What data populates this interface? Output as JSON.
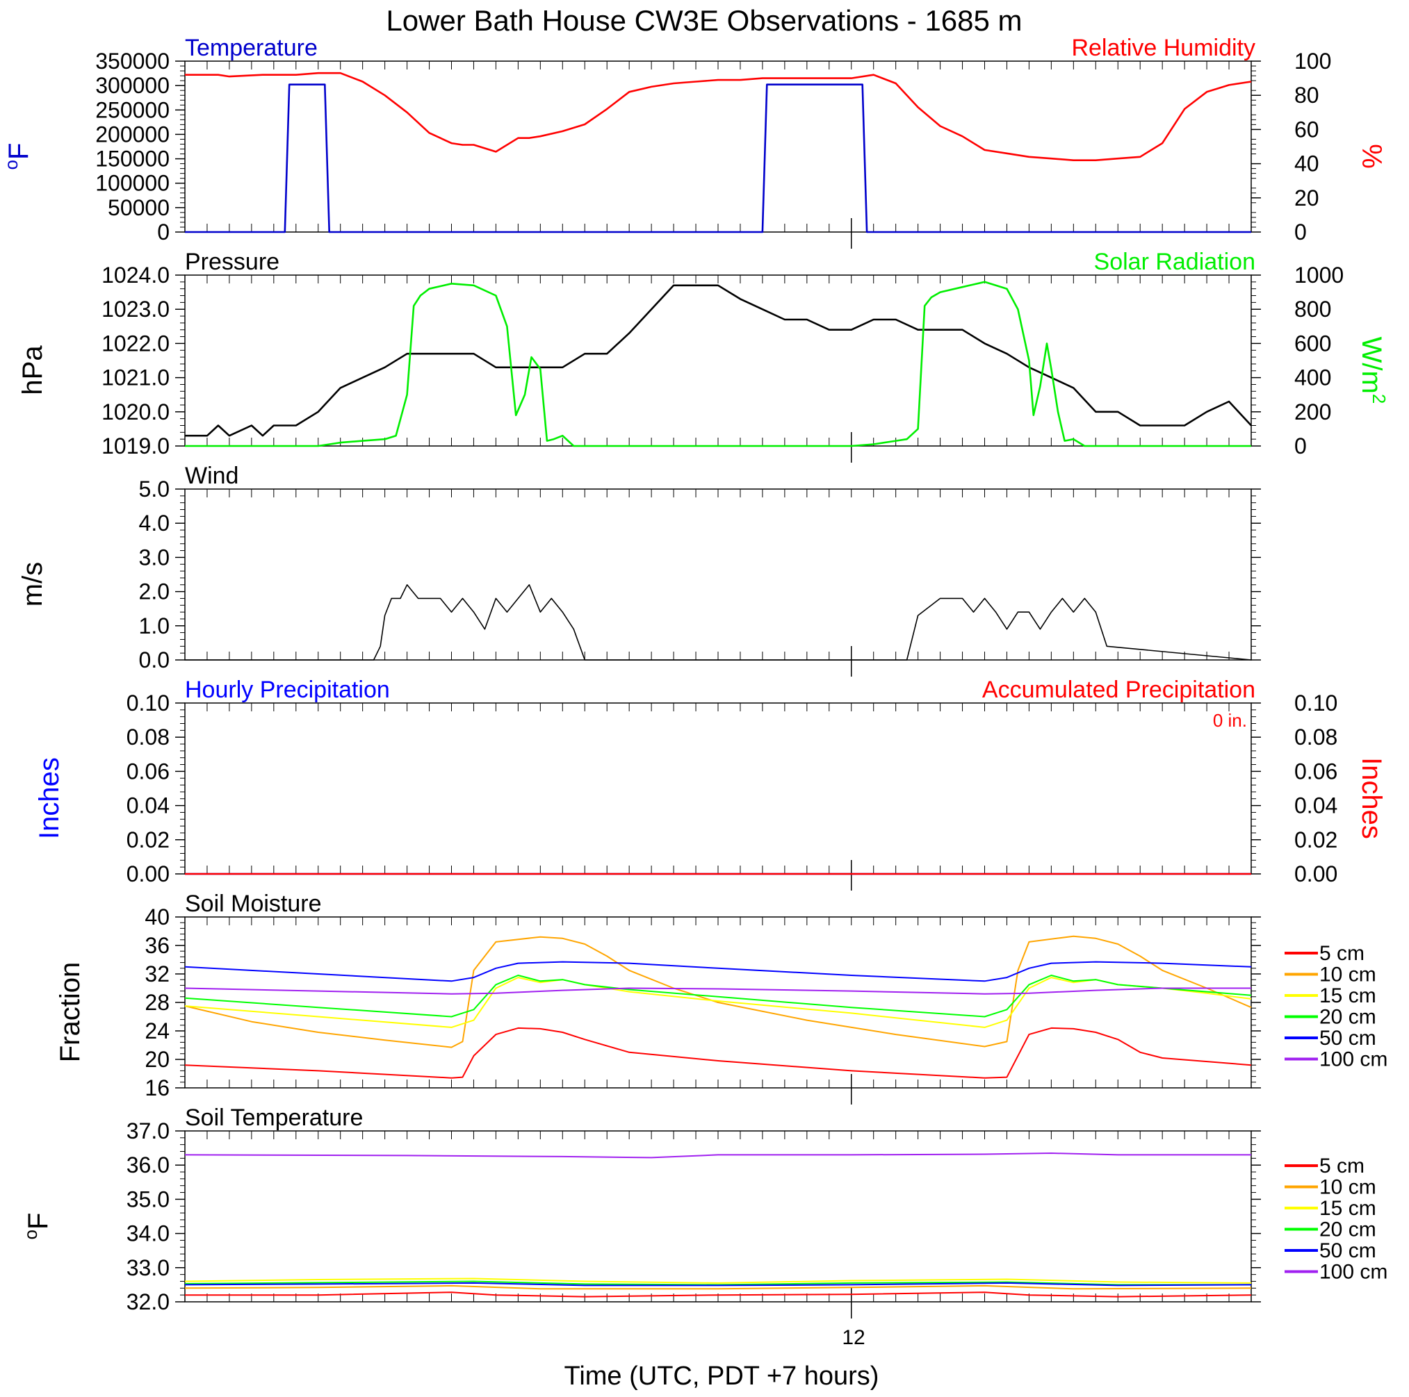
{
  "title": "Lower Bath House CW3E Observations - 1685 m",
  "xlabel": "Time (UTC, PDT +7 hours)",
  "x_tick_label": "12",
  "colors": {
    "temperature": "#0000cc",
    "humidity": "#ff0000",
    "pressure": "#000000",
    "solar": "#00ee00",
    "wind": "#000000",
    "hourly_precip": "#0000ff",
    "accum_precip": "#ff0000",
    "depths": [
      "#ff0000",
      "#ffa500",
      "#ffff00",
      "#00ff00",
      "#0000ff",
      "#a020f0"
    ]
  },
  "chart_data": [
    {
      "type": "line",
      "title": "Temperature",
      "title_right": "Relative Humidity",
      "ylabel": "oF",
      "ylabel_right": "%",
      "ylim": [
        0,
        350000
      ],
      "yticks": [
        "0",
        "50000",
        "100000",
        "150000",
        "200000",
        "250000",
        "300000",
        "350000"
      ],
      "ylim_right": [
        0,
        100
      ],
      "yticks_right": [
        "0",
        "20",
        "40",
        "60",
        "80",
        "100"
      ],
      "xlim": [
        0,
        48
      ],
      "series": [
        {
          "name": "Temperature",
          "axis": "left",
          "x": [
            0,
            4.5,
            4.7,
            6.3,
            6.5,
            26.0,
            26.2,
            30.5,
            30.7,
            48
          ],
          "values": [
            0,
            0,
            302000,
            302000,
            0,
            0,
            302000,
            302000,
            0,
            0
          ]
        },
        {
          "name": "Relative Humidity",
          "axis": "right",
          "x": [
            0,
            1.5,
            2,
            3.5,
            4,
            5,
            6,
            7,
            8,
            9,
            10,
            11,
            12,
            12.5,
            13,
            14,
            15,
            15.5,
            16,
            17,
            18,
            19,
            20,
            21,
            22,
            23,
            24,
            25,
            26,
            27,
            28,
            29,
            30,
            31,
            32,
            33,
            34,
            35,
            36,
            37,
            38,
            39,
            40,
            41,
            42,
            43,
            44,
            45,
            46,
            47,
            48
          ],
          "values": [
            92,
            92,
            91,
            92,
            92,
            92,
            93,
            93,
            88,
            80,
            70,
            58,
            52,
            51,
            51,
            47,
            55,
            55,
            56,
            59,
            63,
            72,
            82,
            85,
            87,
            88,
            89,
            89,
            90,
            90,
            90,
            90,
            90,
            92,
            87,
            73,
            62,
            56,
            48,
            46,
            44,
            43,
            42,
            42,
            43,
            44,
            52,
            72,
            82,
            86,
            88
          ]
        }
      ]
    },
    {
      "type": "line",
      "title": "Pressure",
      "title_right": "Solar Radiation",
      "ylabel": "hPa",
      "ylabel_right": "W/m2",
      "ylim": [
        1019.0,
        1024.0
      ],
      "yticks": [
        "1019.0",
        "1020.0",
        "1021.0",
        "1022.0",
        "1023.0",
        "1024.0"
      ],
      "ylim_right": [
        0,
        1000
      ],
      "yticks_right": [
        "0",
        "200",
        "400",
        "600",
        "800",
        "1000"
      ],
      "xlim": [
        0,
        48
      ],
      "series": [
        {
          "name": "Pressure",
          "axis": "left",
          "x": [
            0,
            1,
            1.5,
            2,
            3,
            3.5,
            4,
            5,
            6,
            7,
            8,
            9,
            10,
            11,
            12,
            13,
            14,
            15,
            16,
            17,
            18,
            19,
            20,
            21,
            22,
            23,
            24,
            25,
            26,
            27,
            28,
            29,
            30,
            31,
            32,
            33,
            34,
            35,
            36,
            37,
            38,
            39,
            40,
            41,
            42,
            43,
            44,
            45,
            46,
            47,
            48
          ],
          "values": [
            1019.3,
            1019.3,
            1019.6,
            1019.3,
            1019.6,
            1019.3,
            1019.6,
            1019.6,
            1020.0,
            1020.7,
            1021.0,
            1021.3,
            1021.7,
            1021.7,
            1021.7,
            1021.7,
            1021.3,
            1021.3,
            1021.3,
            1021.3,
            1021.7,
            1021.7,
            1022.3,
            1023.0,
            1023.7,
            1023.7,
            1023.7,
            1023.3,
            1023.0,
            1022.7,
            1022.7,
            1022.4,
            1022.4,
            1022.7,
            1022.7,
            1022.4,
            1022.4,
            1022.4,
            1022.0,
            1021.7,
            1021.3,
            1021.0,
            1020.7,
            1020.0,
            1020.0,
            1019.6,
            1019.6,
            1019.6,
            1020.0,
            1020.3,
            1019.6
          ]
        },
        {
          "name": "Solar Radiation",
          "axis": "right",
          "x": [
            0,
            6,
            7,
            8,
            9,
            9.5,
            10,
            10.3,
            10.6,
            11,
            12,
            13,
            14,
            14.5,
            14.9,
            15.3,
            15.6,
            16,
            16.3,
            16.6,
            17,
            17.5,
            18,
            18,
            30,
            31,
            32,
            32.5,
            33,
            33.3,
            33.6,
            34,
            35,
            36,
            37,
            37.5,
            38,
            38.2,
            38.5,
            38.8,
            39,
            39.3,
            39.6,
            40,
            40.5,
            41,
            48
          ],
          "values": [
            0,
            0,
            20,
            30,
            40,
            60,
            300,
            820,
            880,
            920,
            950,
            940,
            880,
            700,
            180,
            300,
            520,
            450,
            30,
            40,
            60,
            0,
            0,
            0,
            0,
            10,
            30,
            40,
            100,
            820,
            870,
            900,
            930,
            960,
            920,
            800,
            500,
            180,
            350,
            600,
            450,
            200,
            30,
            40,
            0,
            0,
            0
          ]
        }
      ]
    },
    {
      "type": "line",
      "title": "Wind",
      "ylabel": "m/s",
      "ylim": [
        0.0,
        5.0
      ],
      "yticks": [
        "0.0",
        "1.0",
        "2.0",
        "3.0",
        "4.0",
        "5.0"
      ],
      "xlim": [
        0,
        48
      ],
      "series": [
        {
          "name": "Wind",
          "axis": "left",
          "x": [
            0,
            8.5,
            8.8,
            9,
            9.3,
            9.7,
            10,
            10.5,
            11,
            11.5,
            12,
            12.5,
            13,
            13.5,
            14,
            14.5,
            15,
            15.5,
            16,
            16.5,
            17,
            17.5,
            18,
            32.5,
            33,
            34,
            35,
            35.5,
            36,
            36.5,
            37,
            37.5,
            38,
            38.5,
            39,
            39.5,
            40,
            40.5,
            41,
            41.5,
            48
          ],
          "values": [
            0,
            0,
            0.4,
            1.3,
            1.8,
            1.8,
            2.2,
            1.8,
            1.8,
            1.8,
            1.4,
            1.8,
            1.4,
            0.9,
            1.8,
            1.4,
            1.8,
            2.2,
            1.4,
            1.8,
            1.4,
            0.9,
            0,
            0,
            1.3,
            1.8,
            1.8,
            1.4,
            1.8,
            1.4,
            0.9,
            1.4,
            1.4,
            0.9,
            1.4,
            1.8,
            1.4,
            1.8,
            1.4,
            0.4,
            0
          ]
        }
      ]
    },
    {
      "type": "line",
      "title": "Hourly Precipitation",
      "title_right": "Accumulated Precipitation",
      "annotation": "0 in.",
      "ylabel": "Inches",
      "ylabel_right": "Inches",
      "ylim": [
        0.0,
        0.1
      ],
      "yticks": [
        "0.00",
        "0.02",
        "0.04",
        "0.06",
        "0.08",
        "0.10"
      ],
      "ylim_right": [
        0.0,
        0.1
      ],
      "yticks_right": [
        "0.00",
        "0.02",
        "0.04",
        "0.06",
        "0.08",
        "0.10"
      ],
      "xlim": [
        0,
        48
      ],
      "series": [
        {
          "name": "Hourly Precipitation",
          "axis": "left",
          "x": [
            0,
            48
          ],
          "values": [
            0,
            0
          ]
        },
        {
          "name": "Accumulated Precipitation",
          "axis": "right",
          "x": [
            0,
            48
          ],
          "values": [
            0,
            0
          ]
        }
      ]
    },
    {
      "type": "line",
      "title": "Soil Moisture",
      "ylabel": "Fraction",
      "ylim": [
        16,
        40
      ],
      "yticks": [
        "16",
        "20",
        "24",
        "28",
        "32",
        "36",
        "40"
      ],
      "xlim": [
        0,
        48
      ],
      "legend": [
        "5 cm",
        "10 cm",
        "15 cm",
        "20 cm",
        "50 cm",
        "100 cm"
      ],
      "series": [
        {
          "name": "5 cm",
          "x": [
            0,
            6,
            12,
            12.5,
            13,
            14,
            15,
            16,
            17,
            18,
            20,
            24,
            30,
            36,
            37,
            37.5,
            38,
            39,
            40,
            41,
            42,
            43,
            44,
            48
          ],
          "values": [
            19.2,
            18.4,
            17.4,
            17.5,
            20.5,
            23.5,
            24.4,
            24.3,
            23.8,
            22.8,
            21.0,
            19.8,
            18.4,
            17.4,
            17.5,
            20.5,
            23.5,
            24.4,
            24.3,
            23.8,
            22.8,
            21.0,
            20.2,
            19.2
          ]
        },
        {
          "name": "10 cm",
          "x": [
            0,
            3,
            6,
            9,
            12,
            12.5,
            13,
            14,
            16,
            17,
            18,
            19,
            20,
            22,
            24,
            28,
            32,
            36,
            37,
            37.5,
            38,
            40,
            41,
            42,
            43,
            44,
            46,
            48
          ],
          "values": [
            27.5,
            25.3,
            23.8,
            22.7,
            21.7,
            22.5,
            32.5,
            36.5,
            37.2,
            37.0,
            36.2,
            34.5,
            32.5,
            30.0,
            28.0,
            25.5,
            23.5,
            21.8,
            22.5,
            32.5,
            36.5,
            37.3,
            37.0,
            36.2,
            34.5,
            32.5,
            30.0,
            27.3
          ]
        },
        {
          "name": "15 cm",
          "x": [
            0,
            6,
            12,
            13,
            14,
            15,
            16,
            17,
            18,
            20,
            24,
            30,
            36,
            37,
            38,
            39,
            40,
            41,
            42,
            44,
            46,
            48
          ],
          "values": [
            27.5,
            26.0,
            24.5,
            25.5,
            30.0,
            31.5,
            30.8,
            31.2,
            30.5,
            29.5,
            28.2,
            26.5,
            24.5,
            25.5,
            30.0,
            31.5,
            30.8,
            31.2,
            30.5,
            30.0,
            29.3,
            28.5
          ]
        },
        {
          "name": "20 cm",
          "x": [
            0,
            6,
            12,
            13,
            14,
            15,
            16,
            17,
            18,
            20,
            24,
            30,
            36,
            37,
            38,
            39,
            40,
            41,
            42,
            44,
            46,
            48
          ],
          "values": [
            28.6,
            27.3,
            26.0,
            27.0,
            30.5,
            31.8,
            31.0,
            31.2,
            30.5,
            29.8,
            28.8,
            27.3,
            26.0,
            27.0,
            30.5,
            31.8,
            31.0,
            31.2,
            30.5,
            30.0,
            29.5,
            29.0
          ]
        },
        {
          "name": "50 cm",
          "x": [
            0,
            6,
            12,
            13,
            14,
            15,
            17,
            20,
            24,
            30,
            36,
            37,
            38,
            39,
            41,
            44,
            48
          ],
          "values": [
            33.0,
            32.0,
            31.0,
            31.5,
            32.8,
            33.5,
            33.7,
            33.5,
            32.8,
            31.8,
            31.0,
            31.5,
            32.8,
            33.5,
            33.7,
            33.5,
            33.0
          ]
        },
        {
          "name": "100 cm",
          "x": [
            0,
            6,
            12,
            14,
            17,
            20,
            24,
            30,
            36,
            38,
            41,
            44,
            48
          ],
          "values": [
            30.0,
            29.6,
            29.2,
            29.3,
            29.7,
            30.0,
            29.9,
            29.6,
            29.2,
            29.3,
            29.7,
            30.0,
            30.0
          ]
        }
      ]
    },
    {
      "type": "line",
      "title": "Soil Temperature",
      "ylabel": "oF",
      "ylim": [
        32.0,
        37.0
      ],
      "yticks": [
        "32.0",
        "33.0",
        "34.0",
        "35.0",
        "36.0",
        "37.0"
      ],
      "xlim": [
        0,
        48
      ],
      "legend": [
        "5 cm",
        "10 cm",
        "15 cm",
        "20 cm",
        "50 cm",
        "100 cm"
      ],
      "series": [
        {
          "name": "5 cm",
          "x": [
            0,
            6,
            12,
            14,
            18,
            24,
            30,
            36,
            38,
            42,
            48
          ],
          "values": [
            32.2,
            32.2,
            32.28,
            32.2,
            32.15,
            32.2,
            32.22,
            32.28,
            32.2,
            32.15,
            32.2
          ]
        },
        {
          "name": "10 cm",
          "x": [
            0,
            6,
            12,
            16,
            24,
            30,
            36,
            40,
            48
          ],
          "values": [
            32.4,
            32.42,
            32.47,
            32.38,
            32.38,
            32.42,
            32.47,
            32.38,
            32.4
          ]
        },
        {
          "name": "15 cm",
          "x": [
            0,
            6,
            13,
            18,
            24,
            30,
            37,
            42,
            48
          ],
          "values": [
            32.6,
            32.65,
            32.68,
            32.6,
            32.55,
            32.62,
            32.66,
            32.58,
            32.55
          ]
        },
        {
          "name": "20 cm",
          "x": [
            0,
            6,
            13,
            18,
            24,
            30,
            37,
            42,
            48
          ],
          "values": [
            32.53,
            32.56,
            32.6,
            32.52,
            32.5,
            32.55,
            32.58,
            32.5,
            32.5
          ]
        },
        {
          "name": "50 cm",
          "x": [
            0,
            6,
            13,
            18,
            24,
            30,
            37,
            42,
            48
          ],
          "values": [
            32.5,
            32.52,
            32.55,
            32.48,
            32.48,
            32.5,
            32.55,
            32.48,
            32.5
          ]
        },
        {
          "name": "100 cm",
          "x": [
            0,
            10,
            17,
            21,
            24,
            30,
            36,
            39,
            42,
            48
          ],
          "values": [
            36.3,
            36.28,
            36.25,
            36.22,
            36.3,
            36.3,
            36.32,
            36.35,
            36.3,
            36.3
          ]
        }
      ]
    }
  ]
}
